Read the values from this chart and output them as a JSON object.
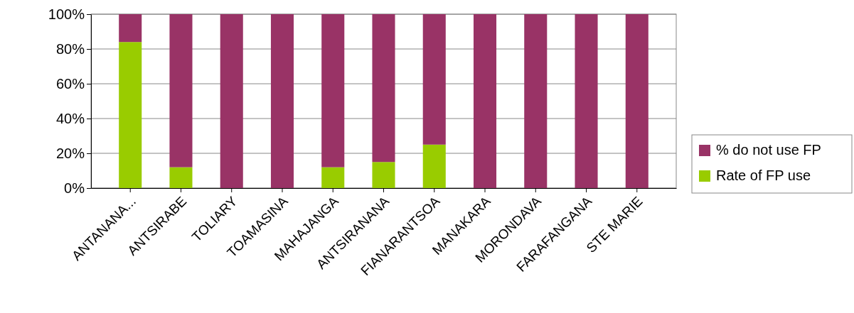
{
  "chart_data": {
    "type": "bar",
    "stacked": true,
    "categories": [
      "ANTANANA...",
      "ANTSIRABE",
      "TOLIARY",
      "TOAMASINA",
      "MAHAJANGA",
      "ANTSIRANANA",
      "FIANARANTSOA",
      "MANAKARA",
      "MORONDAVA",
      "FARAFANGANA",
      "STE MARIE"
    ],
    "series": [
      {
        "name": "Rate of FP use",
        "color": "#99cc00",
        "values": [
          84,
          12,
          0,
          0,
          12,
          15,
          25,
          0,
          0,
          0,
          0
        ]
      },
      {
        "name": "% do not use FP",
        "color": "#993366",
        "values": [
          16,
          88,
          100,
          100,
          88,
          85,
          75,
          100,
          100,
          100,
          100
        ]
      }
    ],
    "ylim": [
      0,
      100
    ],
    "yticks": [
      {
        "value": 0,
        "label": "0%"
      },
      {
        "value": 20,
        "label": "20%"
      },
      {
        "value": 40,
        "label": "40%"
      },
      {
        "value": 60,
        "label": "60%"
      },
      {
        "value": 80,
        "label": "80%"
      },
      {
        "value": 100,
        "label": "100%"
      }
    ],
    "grid": true,
    "legend": "right"
  }
}
